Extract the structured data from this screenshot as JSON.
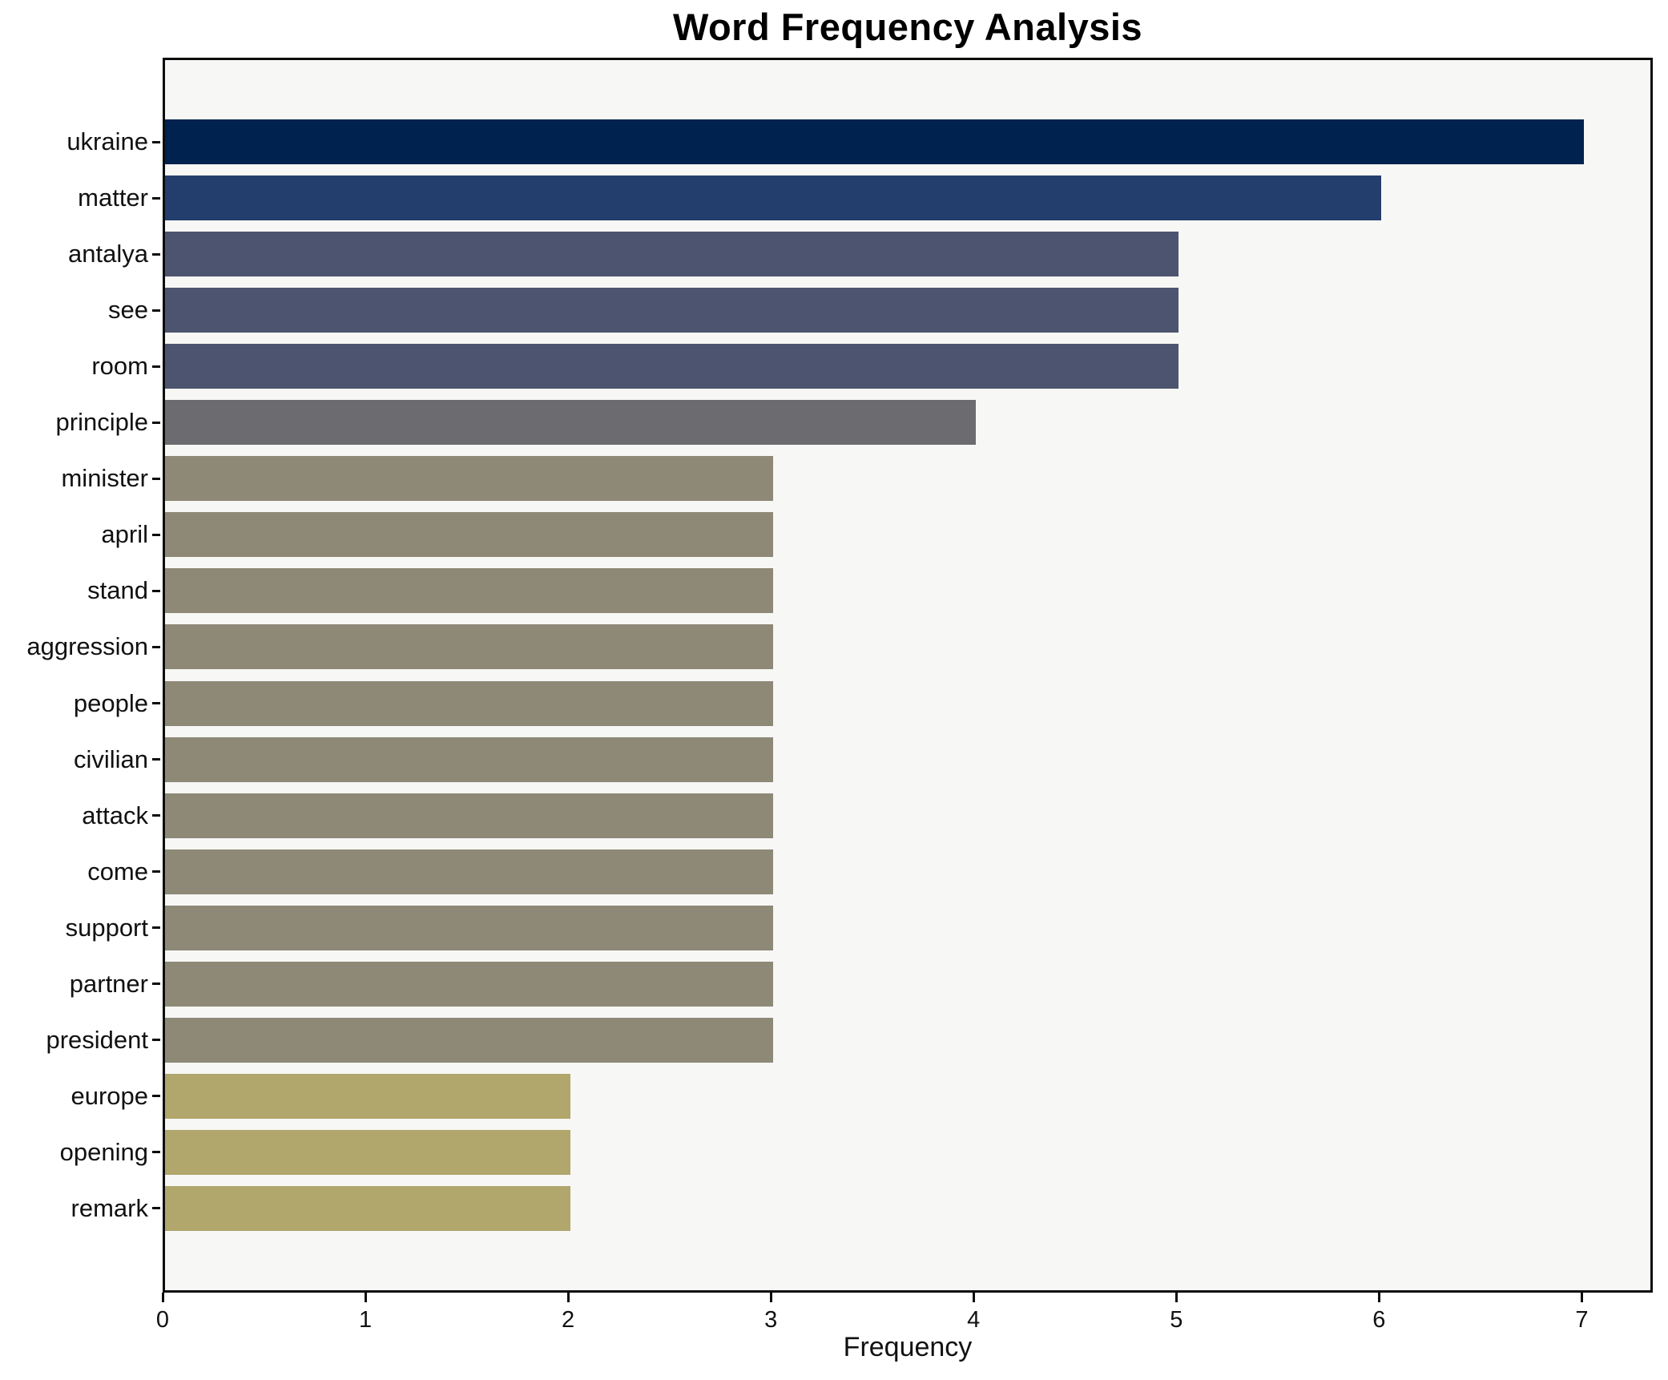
{
  "chart_data": {
    "type": "bar",
    "orientation": "horizontal",
    "title": "Word Frequency Analysis",
    "xlabel": "Frequency",
    "ylabel": "",
    "categories": [
      "ukraine",
      "matter",
      "antalya",
      "see",
      "room",
      "principle",
      "minister",
      "april",
      "stand",
      "aggression",
      "people",
      "civilian",
      "attack",
      "come",
      "support",
      "partner",
      "president",
      "europe",
      "opening",
      "remark"
    ],
    "values": [
      7,
      6,
      5,
      5,
      5,
      4,
      3,
      3,
      3,
      3,
      3,
      3,
      3,
      3,
      3,
      3,
      3,
      2,
      2,
      2
    ],
    "xlim": [
      0,
      7.35
    ],
    "xticks": [
      0,
      1,
      2,
      3,
      4,
      5,
      6,
      7
    ],
    "grid": false,
    "legend": "none",
    "bar_colors": [
      "#00224e",
      "#233e6c",
      "#4c546f",
      "#4c546f",
      "#4c546f",
      "#6c6c70",
      "#8e8877",
      "#8e8877",
      "#8e8877",
      "#8e8877",
      "#8e8877",
      "#8e8877",
      "#8e8877",
      "#8e8877",
      "#8e8877",
      "#8e8877",
      "#8e8877",
      "#b1a66b",
      "#b1a66b",
      "#b1a66b"
    ],
    "palette_by_value": {
      "7": "#00224e",
      "6": "#233e6c",
      "5": "#4c546f",
      "4": "#6c6c70",
      "3": "#8e8877",
      "2": "#b1a66b"
    }
  },
  "style": {
    "figure_background": "#ffffff",
    "plot_background": "#f7f7f5",
    "spine_color": "#0c0c0c",
    "text_color": "#111111"
  }
}
